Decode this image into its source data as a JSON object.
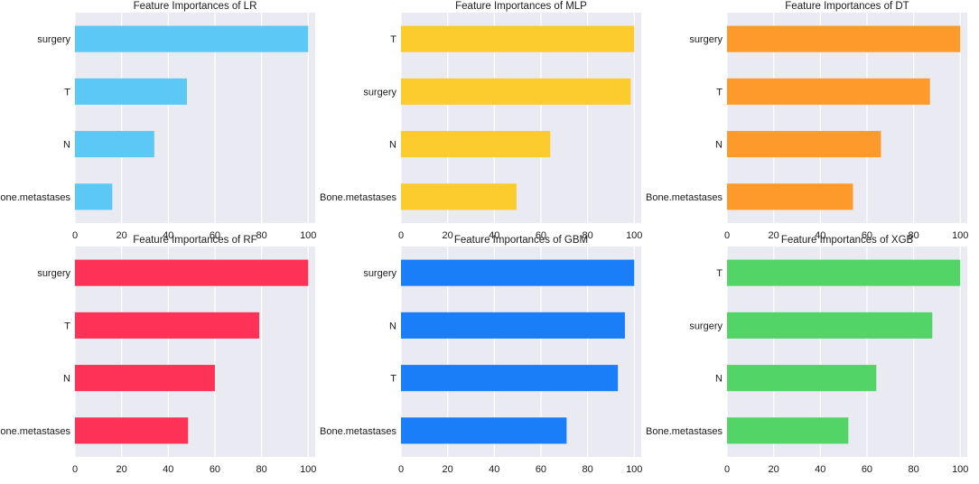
{
  "chart_data": [
    {
      "type": "bar",
      "orientation": "horizontal",
      "title": "Feature Importances of LR",
      "categories": [
        "surgery",
        "T",
        "N",
        "Bone.metastases"
      ],
      "values": [
        100,
        48,
        34,
        16
      ],
      "color": "#5bc8f5",
      "xlim": [
        0,
        103
      ],
      "xticks": [
        0,
        20,
        40,
        60,
        80,
        100
      ],
      "xlabel": "",
      "ylabel": ""
    },
    {
      "type": "bar",
      "orientation": "horizontal",
      "title": "Feature Importances of MLP",
      "categories": [
        "T",
        "surgery",
        "N",
        "Bone.metastases"
      ],
      "values": [
        100,
        98.5,
        64,
        49.5
      ],
      "color": "#fccb2e",
      "xlim": [
        0,
        103
      ],
      "xticks": [
        0,
        20,
        40,
        60,
        80,
        100
      ],
      "xlabel": "",
      "ylabel": ""
    },
    {
      "type": "bar",
      "orientation": "horizontal",
      "title": "Feature Importances of DT",
      "categories": [
        "surgery",
        "T",
        "N",
        "Bone.metastases"
      ],
      "values": [
        100,
        87,
        66,
        54
      ],
      "color": "#fd9a2c",
      "xlim": [
        0,
        103
      ],
      "xticks": [
        0,
        20,
        40,
        60,
        80,
        100
      ],
      "xlabel": "",
      "ylabel": ""
    },
    {
      "type": "bar",
      "orientation": "horizontal",
      "title": "Feature Importances of RF",
      "categories": [
        "surgery",
        "T",
        "N",
        "Bone.metastases"
      ],
      "values": [
        100,
        79,
        60,
        48.5
      ],
      "color": "#fe3257",
      "xlim": [
        0,
        103
      ],
      "xticks": [
        0,
        20,
        40,
        60,
        80,
        100
      ],
      "xlabel": "",
      "ylabel": ""
    },
    {
      "type": "bar",
      "orientation": "horizontal",
      "title": "Feature Importances of GBM",
      "categories": [
        "surgery",
        "N",
        "T",
        "Bone.metastases"
      ],
      "values": [
        100,
        96,
        93,
        71
      ],
      "color": "#1a7ef9",
      "xlim": [
        0,
        103
      ],
      "xticks": [
        0,
        20,
        40,
        60,
        80,
        100
      ],
      "xlabel": "",
      "ylabel": ""
    },
    {
      "type": "bar",
      "orientation": "horizontal",
      "title": "Feature Importances of XGB",
      "categories": [
        "T",
        "surgery",
        "N",
        "Bone.metastases"
      ],
      "values": [
        100,
        88,
        64,
        52
      ],
      "color": "#52d566",
      "xlim": [
        0,
        103
      ],
      "xticks": [
        0,
        20,
        40,
        60,
        80,
        100
      ],
      "xlabel": "",
      "ylabel": ""
    }
  ]
}
